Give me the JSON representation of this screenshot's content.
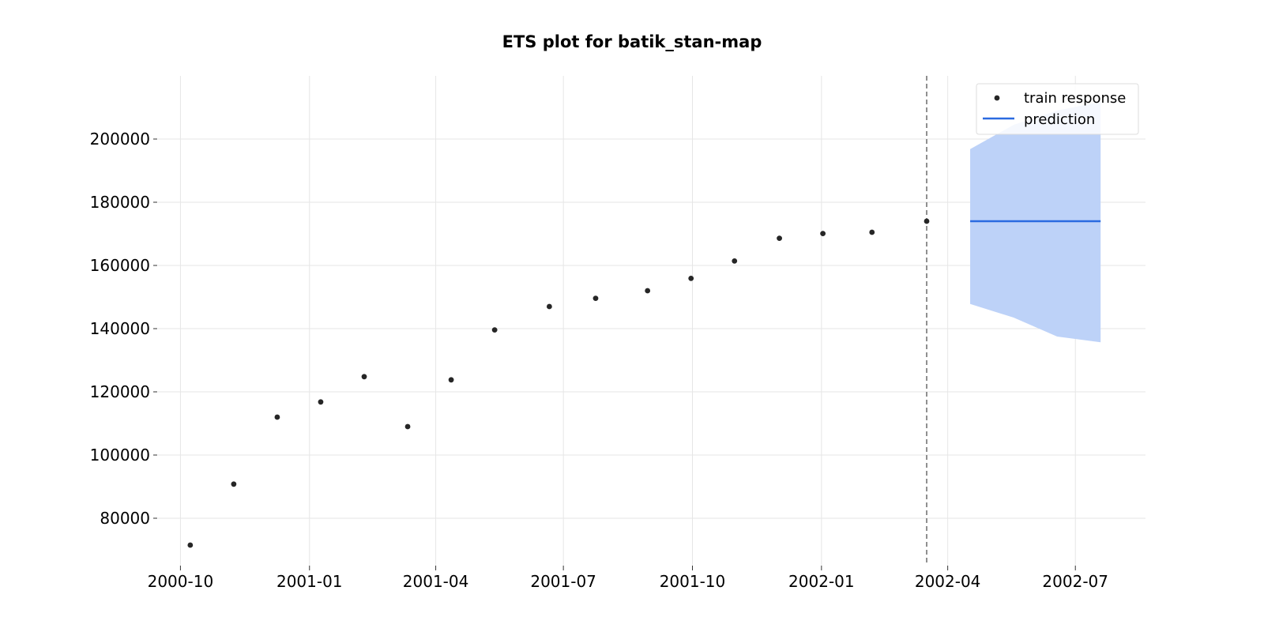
{
  "chart_data": {
    "type": "scatter",
    "title": "ETS plot for batik_stan-map",
    "xlabel": "",
    "ylabel": "",
    "x_ticks": [
      "2000-10",
      "2001-01",
      "2001-04",
      "2001-07",
      "2001-10",
      "2002-01",
      "2002-04",
      "2002-07"
    ],
    "y_ticks": [
      80000,
      100000,
      120000,
      140000,
      160000,
      180000,
      200000
    ],
    "x_range": [
      "2000-09-15",
      "2002-08-20"
    ],
    "ylim": [
      65000,
      220000
    ],
    "grid": true,
    "legend_position": "top-right",
    "train_end_marker": "2002-03-17",
    "series": [
      {
        "name": "train response",
        "kind": "scatter",
        "color": "#262626",
        "points": [
          {
            "x": "2000-10-08",
            "y": 71500
          },
          {
            "x": "2000-11-08",
            "y": 90800
          },
          {
            "x": "2000-12-09",
            "y": 112000
          },
          {
            "x": "2001-01-09",
            "y": 116800
          },
          {
            "x": "2001-02-09",
            "y": 124800
          },
          {
            "x": "2001-03-12",
            "y": 109000
          },
          {
            "x": "2001-04-12",
            "y": 123800
          },
          {
            "x": "2001-05-13",
            "y": 139600
          },
          {
            "x": "2001-06-21",
            "y": 147000
          },
          {
            "x": "2001-07-24",
            "y": 149600
          },
          {
            "x": "2001-08-30",
            "y": 152000
          },
          {
            "x": "2001-09-30",
            "y": 155900
          },
          {
            "x": "2001-10-31",
            "y": 161400
          },
          {
            "x": "2001-12-02",
            "y": 168600
          },
          {
            "x": "2002-01-02",
            "y": 170100
          },
          {
            "x": "2002-02-06",
            "y": 170500
          },
          {
            "x": "2002-03-17",
            "y": 174000
          }
        ]
      },
      {
        "name": "prediction",
        "kind": "line",
        "color": "#2b6be0",
        "band_color": "#bdd2f8",
        "points": [
          {
            "x": "2002-04-17",
            "y": 174000,
            "lower": 147800,
            "upper": 196800
          },
          {
            "x": "2002-05-18",
            "y": 174000,
            "lower": 143500,
            "upper": 204500
          },
          {
            "x": "2002-06-18",
            "y": 174000,
            "lower": 137500,
            "upper": 209000
          },
          {
            "x": "2002-07-19",
            "y": 174000,
            "lower": 135700,
            "upper": 211800
          }
        ]
      }
    ]
  }
}
